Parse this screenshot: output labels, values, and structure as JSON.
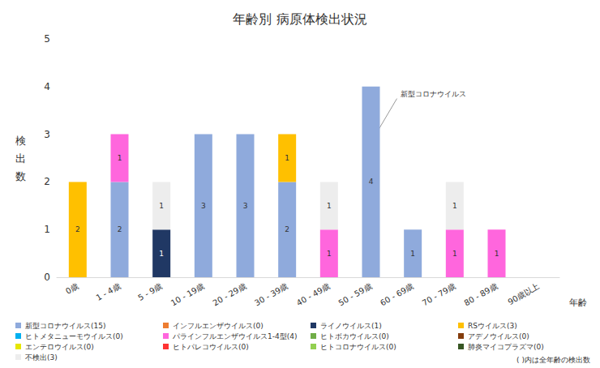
{
  "chart_data": {
    "type": "bar",
    "title": "年齢別 病原体検出状況",
    "x_label": "年齢",
    "y_label": "検出数",
    "note": "( )内は全年齢の検出数",
    "categories": [
      "0歳",
      "1 - 4歳",
      "5 - 9歳",
      "10 - 19歳",
      "20 - 29歳",
      "30 - 39歳",
      "40 - 49歳",
      "50 - 59歳",
      "60 - 69歳",
      "70 - 79歳",
      "80 - 89歳",
      "90歳以上"
    ],
    "series": [
      {
        "name": "新型コロナウイルス(15)",
        "color": "#8faadc",
        "values": [
          0,
          2,
          0,
          3,
          3,
          2,
          0,
          4,
          1,
          0,
          0,
          0
        ]
      },
      {
        "name": "インフルエンザウイルス(0)",
        "color": "#ed7d31",
        "values": [
          0,
          0,
          0,
          0,
          0,
          0,
          0,
          0,
          0,
          0,
          0,
          0
        ]
      },
      {
        "name": "ライノウイルス(1)",
        "color": "#203864",
        "values": [
          0,
          0,
          1,
          0,
          0,
          0,
          0,
          0,
          0,
          0,
          0,
          0
        ]
      },
      {
        "name": "RSウイルス(3)",
        "color": "#ffc000",
        "values": [
          2,
          0,
          0,
          0,
          0,
          1,
          0,
          0,
          0,
          0,
          0,
          0
        ]
      },
      {
        "name": "ヒトメタニューモウイルス(0)",
        "color": "#00b0f0",
        "values": [
          0,
          0,
          0,
          0,
          0,
          0,
          0,
          0,
          0,
          0,
          0,
          0
        ]
      },
      {
        "name": "パラインフルエンザウイルス1-4型(4)",
        "color": "#ff66dd",
        "values": [
          0,
          1,
          0,
          0,
          0,
          0,
          1,
          0,
          0,
          1,
          1,
          0
        ]
      },
      {
        "name": "ヒトボカウイルス(0)",
        "color": "#70ad47",
        "values": [
          0,
          0,
          0,
          0,
          0,
          0,
          0,
          0,
          0,
          0,
          0,
          0
        ]
      },
      {
        "name": "アデノウイルス(0)",
        "color": "#843c0c",
        "values": [
          0,
          0,
          0,
          0,
          0,
          0,
          0,
          0,
          0,
          0,
          0,
          0
        ]
      },
      {
        "name": "エンテロウイルス(0)",
        "color": "#e6e600",
        "values": [
          0,
          0,
          0,
          0,
          0,
          0,
          0,
          0,
          0,
          0,
          0,
          0
        ]
      },
      {
        "name": "ヒトパレコウイルス(0)",
        "color": "#ff3333",
        "values": [
          0,
          0,
          0,
          0,
          0,
          0,
          0,
          0,
          0,
          0,
          0,
          0
        ]
      },
      {
        "name": "ヒトコロナウイルス(0)",
        "color": "#92d050",
        "values": [
          0,
          0,
          0,
          0,
          0,
          0,
          0,
          0,
          0,
          0,
          0,
          0
        ]
      },
      {
        "name": "肺炎マイコプラズマ(0)",
        "color": "#375623",
        "values": [
          0,
          0,
          0,
          0,
          0,
          0,
          0,
          0,
          0,
          0,
          0,
          0
        ]
      },
      {
        "name": "不検出(3)",
        "color": "#ededed",
        "values": [
          0,
          0,
          1,
          0,
          0,
          0,
          1,
          0,
          0,
          1,
          0,
          0
        ]
      }
    ],
    "annotations": [
      {
        "text": "新型コロナウイルス",
        "category": "50 - 59歳",
        "series": "新型コロナウイルス(15)"
      }
    ],
    "ylim": [
      0,
      5
    ],
    "yticks": [
      0,
      1,
      2,
      3,
      4,
      5
    ],
    "stacked": true,
    "data_labels": true,
    "grid": false,
    "legend": "bottom"
  }
}
